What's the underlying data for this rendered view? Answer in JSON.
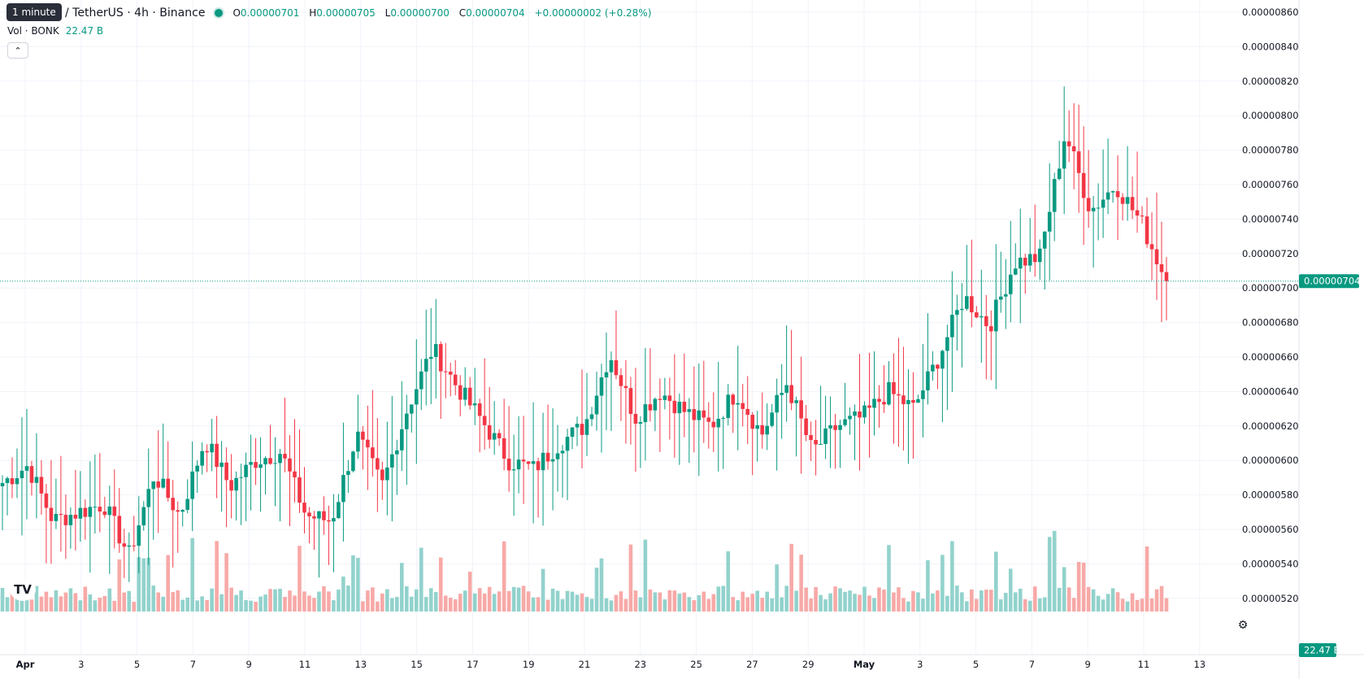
{
  "tooltip": "1 minute",
  "legend": {
    "symbol": "/ TetherUS · 4h · Binance",
    "open_key": "O",
    "open": "0.00000701",
    "high_key": "H",
    "high": "0.00000705",
    "low_key": "L",
    "low": "0.00000700",
    "close_key": "C",
    "close": "0.00000704",
    "change": "+0.00000002 (+0.28%)"
  },
  "volume": {
    "label": "Vol · BONK",
    "value": "22.47 B"
  },
  "collapse_icon": "chevron-up-icon",
  "price_axis": {
    "ticks": [
      "0.00000860",
      "0.00000840",
      "0.00000820",
      "0.00000800",
      "0.00000780",
      "0.00000760",
      "0.00000740",
      "0.00000720",
      "0.00000700",
      "0.00000680",
      "0.00000660",
      "0.00000640",
      "0.00000620",
      "0.00000600",
      "0.00000580",
      "0.00000560",
      "0.00000540",
      "0.00000520"
    ],
    "last_price": "0.00000704",
    "volume_badge": "22.47 B"
  },
  "time_axis": {
    "ticks": [
      "Apr",
      "3",
      "5",
      "7",
      "9",
      "11",
      "13",
      "15",
      "17",
      "19",
      "21",
      "23",
      "25",
      "27",
      "29",
      "May",
      "3",
      "5",
      "7",
      "9",
      "11",
      "13"
    ]
  },
  "colors": {
    "up": "#089981",
    "down": "#f23645",
    "up_vol": "#92d2cc",
    "down_vol": "#f7a9a7",
    "grid": "#f0f3fa"
  },
  "chart_data": {
    "type": "candlestick",
    "ylim": [
      5.1e-06,
      8.65e-06
    ],
    "close_path": [
      [
        "Apr 1",
        5.87e-06
      ],
      [
        "Apr 2",
        5.97e-06
      ],
      [
        "Apr 3",
        5.65e-06
      ],
      [
        "Apr 4",
        5.7e-06
      ],
      [
        "Apr 5",
        5.75e-06
      ],
      [
        "Apr 6",
        5.45e-06
      ],
      [
        "Apr 7",
        5.92e-06
      ],
      [
        "Apr 8",
        5.68e-06
      ],
      [
        "Apr 8",
        6.12e-06
      ],
      [
        "Apr 9",
        5.85e-06
      ],
      [
        "Apr 10",
        6e-06
      ],
      [
        "Apr 11",
        6.05e-06
      ],
      [
        "Apr 12",
        5.68e-06
      ],
      [
        "Apr 13",
        5.65e-06
      ],
      [
        "Apr 14",
        6.15e-06
      ],
      [
        "Apr 15",
        5.85e-06
      ],
      [
        "Apr 16",
        6.3e-06
      ],
      [
        "Apr 17",
        6.65e-06
      ],
      [
        "Apr 18",
        6.42e-06
      ],
      [
        "Apr 18",
        6.22e-06
      ],
      [
        "Apr 19",
        6e-06
      ],
      [
        "Apr 20",
        5.95e-06
      ],
      [
        "Apr 21",
        6.1e-06
      ],
      [
        "Apr 22",
        6.2e-06
      ],
      [
        "Apr 23",
        6.62e-06
      ],
      [
        "Apr 23",
        6.25e-06
      ],
      [
        "Apr 24",
        6.4e-06
      ],
      [
        "Apr 25",
        6.28e-06
      ],
      [
        "Apr 26",
        6.2e-06
      ],
      [
        "Apr 27",
        6.4e-06
      ],
      [
        "Apr 28",
        6.15e-06
      ],
      [
        "Apr 29",
        6.45e-06
      ],
      [
        "Apr 30",
        6.05e-06
      ],
      [
        "May 1",
        6.2e-06
      ],
      [
        "May 3",
        6.25e-06
      ],
      [
        "May 4",
        6.4e-06
      ],
      [
        "May 5",
        6.3e-06
      ],
      [
        "May 6",
        6.6e-06
      ],
      [
        "May 7",
        6.95e-06
      ],
      [
        "May 8",
        6.78e-06
      ],
      [
        "May 9",
        7.15e-06
      ],
      [
        "May 10",
        7.18e-06
      ],
      [
        "May 11",
        7.9e-06
      ],
      [
        "May 11",
        7.45e-06
      ],
      [
        "May 12",
        7.6e-06
      ],
      [
        "May 12",
        7.38e-06
      ],
      [
        "May 13",
        7.04e-06
      ]
    ],
    "volume_spikes": [
      [
        "Apr 17",
        0.6
      ],
      [
        "Apr 18",
        0.5
      ],
      [
        "May 6",
        0.5
      ],
      [
        "May 9",
        0.45
      ],
      [
        "May 11",
        0.6
      ]
    ]
  }
}
